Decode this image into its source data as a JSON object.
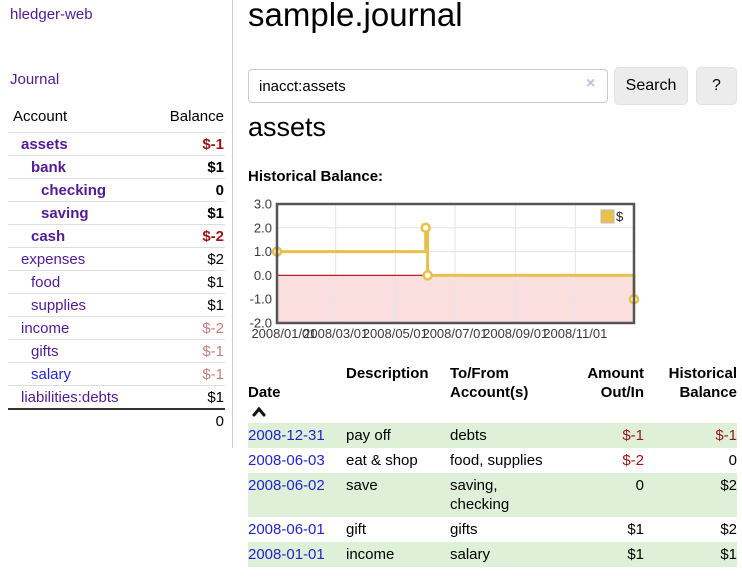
{
  "sidebar": {
    "brand": "hledger-web",
    "journal_link": "Journal",
    "accounts_table": {
      "headers": {
        "account": "Account",
        "balance": "Balance"
      },
      "rows": [
        {
          "name": "assets",
          "balance": "$-1",
          "depth": 1,
          "bold": true,
          "name_color": "purple",
          "balance_tone": "neg"
        },
        {
          "name": "bank",
          "balance": "$1",
          "depth": 2,
          "bold": true,
          "name_color": "purple",
          "balance_tone": "plain"
        },
        {
          "name": "checking",
          "balance": "0",
          "depth": 3,
          "bold": true,
          "name_color": "purple",
          "balance_tone": "plain"
        },
        {
          "name": "saving",
          "balance": "$1",
          "depth": 3,
          "bold": true,
          "name_color": "purple",
          "balance_tone": "plain"
        },
        {
          "name": "cash",
          "balance": "$-2",
          "depth": 2,
          "bold": true,
          "name_color": "purple",
          "balance_tone": "neg"
        },
        {
          "name": "expenses",
          "balance": "$2",
          "depth": 1,
          "bold": false,
          "name_color": "purple",
          "balance_tone": "plain"
        },
        {
          "name": "food",
          "balance": "$1",
          "depth": 2,
          "bold": false,
          "name_color": "purple",
          "balance_tone": "plain"
        },
        {
          "name": "supplies",
          "balance": "$1",
          "depth": 2,
          "bold": false,
          "name_color": "purple",
          "balance_tone": "plain"
        },
        {
          "name": "income",
          "balance": "$-2",
          "depth": 1,
          "bold": false,
          "name_color": "purple",
          "balance_tone": "negsoft"
        },
        {
          "name": "gifts",
          "balance": "$-1",
          "depth": 2,
          "bold": false,
          "name_color": "purple",
          "balance_tone": "negsoft"
        },
        {
          "name": "salary",
          "balance": "$-1",
          "depth": 2,
          "bold": false,
          "name_color": "blue",
          "balance_tone": "negsoft"
        },
        {
          "name": "liabilities:debts",
          "balance": "$1",
          "depth": 1,
          "bold": false,
          "name_color": "purple",
          "balance_tone": "plain"
        }
      ],
      "total": "0"
    }
  },
  "main": {
    "title": "sample.journal",
    "search": {
      "value": "inacct:assets",
      "clear_icon": "×",
      "search_button": "Search",
      "help_button": "?"
    },
    "account_heading": "assets",
    "chart_heading": "Historical Balance:"
  },
  "chart_data": {
    "type": "line",
    "title": "Historical Balance",
    "step": true,
    "x": [
      "2008-01-01",
      "2008-06-01",
      "2008-06-03",
      "2008-12-31"
    ],
    "series": [
      {
        "name": "$",
        "color": "#e8c04a",
        "values": [
          1,
          2,
          0,
          -1
        ]
      }
    ],
    "xlim": [
      "2008-01-01",
      "2008-12-31"
    ],
    "ylim": [
      -2,
      3
    ],
    "yticks": [
      {
        "value": 3,
        "label": "3.0"
      },
      {
        "value": 2,
        "label": "2.0"
      },
      {
        "value": 1,
        "label": "1.0"
      },
      {
        "value": 0,
        "label": "0.0"
      },
      {
        "value": -1,
        "label": "-1.0"
      },
      {
        "value": -2,
        "label": "-2.0"
      }
    ],
    "xticks": [
      {
        "date": "2008-01-01",
        "label": "2008/01/01"
      },
      {
        "date": "2008-03-01",
        "label": "2008/03/01"
      },
      {
        "date": "2008-05-01",
        "label": "2008/05/01"
      },
      {
        "date": "2008-07-01",
        "label": "2008/07/01"
      },
      {
        "date": "2008-09-01",
        "label": "2008/09/01"
      },
      {
        "date": "2008-11-01",
        "label": "2008/11/01"
      }
    ],
    "grid": true,
    "legend": {
      "entries": [
        "$"
      ],
      "position": "top-right"
    },
    "colors": {
      "series_gold": "#e8c04a",
      "negative_region": "#fbdfdf",
      "zero_line": "#b92121",
      "gridline": "#e5e5e5",
      "frame": "#555555",
      "marker_fill": "#fffdf2",
      "tick_text": "#3a3a3a"
    }
  },
  "register": {
    "headers": {
      "date": "Date",
      "description": "Description",
      "accounts": "To/From\nAccount(s)",
      "amount": "Amount\nOut/In",
      "balance": "Historical\nBalance"
    },
    "sort_icon": "chevron-up",
    "rows": [
      {
        "date": "2008-12-31",
        "description": "pay off",
        "accounts": "debts",
        "amount": "$-1",
        "amount_tone": "neg",
        "balance": "$-1",
        "balance_tone": "neg"
      },
      {
        "date": "2008-06-03",
        "description": "eat & shop",
        "accounts": "food, supplies",
        "amount": "$-2",
        "amount_tone": "neg",
        "balance": "0",
        "balance_tone": "plain"
      },
      {
        "date": "2008-06-02",
        "description": "save",
        "accounts": "saving,\nchecking",
        "amount": "0",
        "amount_tone": "plain",
        "balance": "$2",
        "balance_tone": "plain"
      },
      {
        "date": "2008-06-01",
        "description": "gift",
        "accounts": "gifts",
        "amount": "$1",
        "amount_tone": "plain",
        "balance": "$2",
        "balance_tone": "plain"
      },
      {
        "date": "2008-01-01",
        "description": "income",
        "accounts": "salary",
        "amount": "$1",
        "amount_tone": "plain",
        "balance": "$1",
        "balance_tone": "plain"
      }
    ]
  },
  "colors": {
    "link_purple": "#521b93",
    "link_blue": "#2323cc",
    "negative_strong": "#9c1414",
    "negative_soft": "#c57e7e",
    "row_green": "#dff0d8"
  }
}
